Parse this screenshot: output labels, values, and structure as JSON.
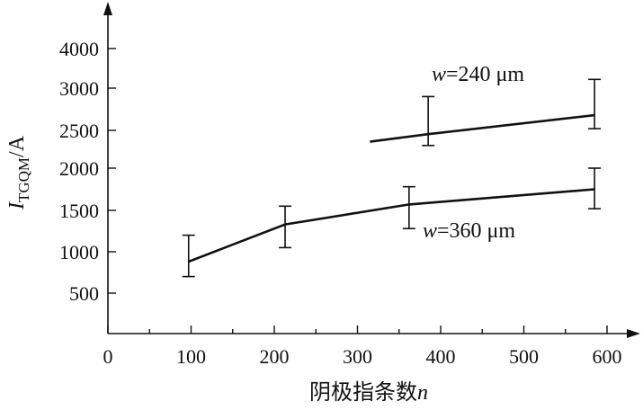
{
  "chart_data": {
    "type": "line",
    "xlabel": "阴极指条数",
    "xlabel_var": "n",
    "ylabel_main": "I",
    "ylabel_sub": "TGQM",
    "ylabel_unit": "/A",
    "x_ticks": [
      0,
      100,
      200,
      300,
      400,
      500,
      600
    ],
    "y_ticks": [
      500,
      1000,
      1500,
      2000,
      2500,
      3000,
      4000
    ],
    "grid": false,
    "series": [
      {
        "name": "w=240 μm",
        "name_var": "w",
        "name_rest": "=240 μm",
        "points": [
          {
            "x": 315,
            "y": 2350
          },
          {
            "x": 385,
            "y": 2450,
            "err_low": 2300,
            "err_high": 2900
          },
          {
            "x": 585,
            "y": 2680,
            "err_low": 2520,
            "err_high": 3220
          }
        ]
      },
      {
        "name": "w=360 μm",
        "name_var": "w",
        "name_rest": "=360 μm",
        "points": [
          {
            "x": 97,
            "y": 880,
            "err_low": 700,
            "err_high": 1200
          },
          {
            "x": 213,
            "y": 1330,
            "err_low": 1050,
            "err_high": 1550
          },
          {
            "x": 362,
            "y": 1570,
            "err_low": 1280,
            "err_high": 1780
          },
          {
            "x": 585,
            "y": 1750,
            "err_low": 1520,
            "err_high": 2000
          }
        ]
      }
    ]
  }
}
